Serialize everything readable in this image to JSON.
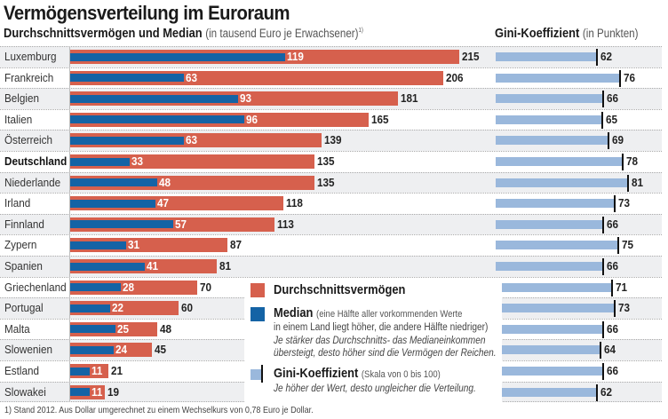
{
  "header": {
    "title": "Vermögensverteilung im Euroraum",
    "subtitle_bold": "Durchschnittsvermögen und Median",
    "subtitle_light": "(in tausend Euro je Erwachsener)",
    "subtitle_footnote_mark": "1)",
    "gini_title_bold": "Gini-Koeffizient",
    "gini_title_light": "(in Punkten)"
  },
  "legend": {
    "avg_label": "Durchschnittsvermögen",
    "median_label": "Median",
    "median_note_1": "(eine Hälfte aller vorkommenden Werte",
    "median_note_2": "in einem Land liegt höher, die andere Hälfte niedriger)",
    "median_note_3": "Je stärker das Durchschnitts- das Medianeinkommen",
    "median_note_4": "übersteigt, desto höher sind die Vermögen der Reichen.",
    "gini_label": "Gini-Koeffizient",
    "gini_note_scale": "(Skala von 0 bis 100)",
    "gini_note": "Je  höher der Wert, desto ungleicher die Verteilung."
  },
  "footnote": "1) Stand 2012. Aus Dollar umgerechnet zu einem Wechselkurs von 0,78 Euro je Dollar.",
  "colors": {
    "average": "#d6604d",
    "median": "#1463a5",
    "gini": "#9ab8dc"
  },
  "chart_data": [
    {
      "type": "bar",
      "orientation": "horizontal",
      "title": "Durchschnittsvermögen und Median",
      "xlabel": "in tausend Euro je Erwachsener",
      "categories": [
        "Luxemburg",
        "Frankreich",
        "Belgien",
        "Italien",
        "Österreich",
        "Deutschland",
        "Niederlande",
        "Irland",
        "Finnland",
        "Zypern",
        "Spanien",
        "Griechenland",
        "Portugal",
        "Malta",
        "Slowenien",
        "Estland",
        "Slowakei"
      ],
      "highlight": "Deutschland",
      "series": [
        {
          "name": "Durchschnittsvermögen",
          "values": [
            215,
            206,
            181,
            165,
            139,
            135,
            135,
            118,
            113,
            87,
            81,
            70,
            60,
            48,
            45,
            21,
            19
          ]
        },
        {
          "name": "Median",
          "values": [
            119,
            63,
            93,
            96,
            63,
            33,
            48,
            47,
            57,
            31,
            41,
            28,
            22,
            25,
            24,
            11,
            11
          ]
        }
      ],
      "xlim": [
        0,
        215
      ],
      "grid": false
    },
    {
      "type": "bar",
      "orientation": "horizontal",
      "title": "Gini-Koeffizient",
      "xlabel": "in Punkten",
      "categories": [
        "Luxemburg",
        "Frankreich",
        "Belgien",
        "Italien",
        "Österreich",
        "Deutschland",
        "Niederlande",
        "Irland",
        "Finnland",
        "Zypern",
        "Spanien",
        "Griechenland",
        "Portugal",
        "Malta",
        "Slowenien",
        "Estland",
        "Slowakei"
      ],
      "series": [
        {
          "name": "Gini-Koeffizient",
          "values": [
            62,
            76,
            66,
            65,
            69,
            78,
            81,
            73,
            66,
            75,
            66,
            71,
            73,
            66,
            64,
            66,
            62
          ]
        }
      ],
      "xlim": [
        0,
        100
      ],
      "grid": false
    }
  ]
}
